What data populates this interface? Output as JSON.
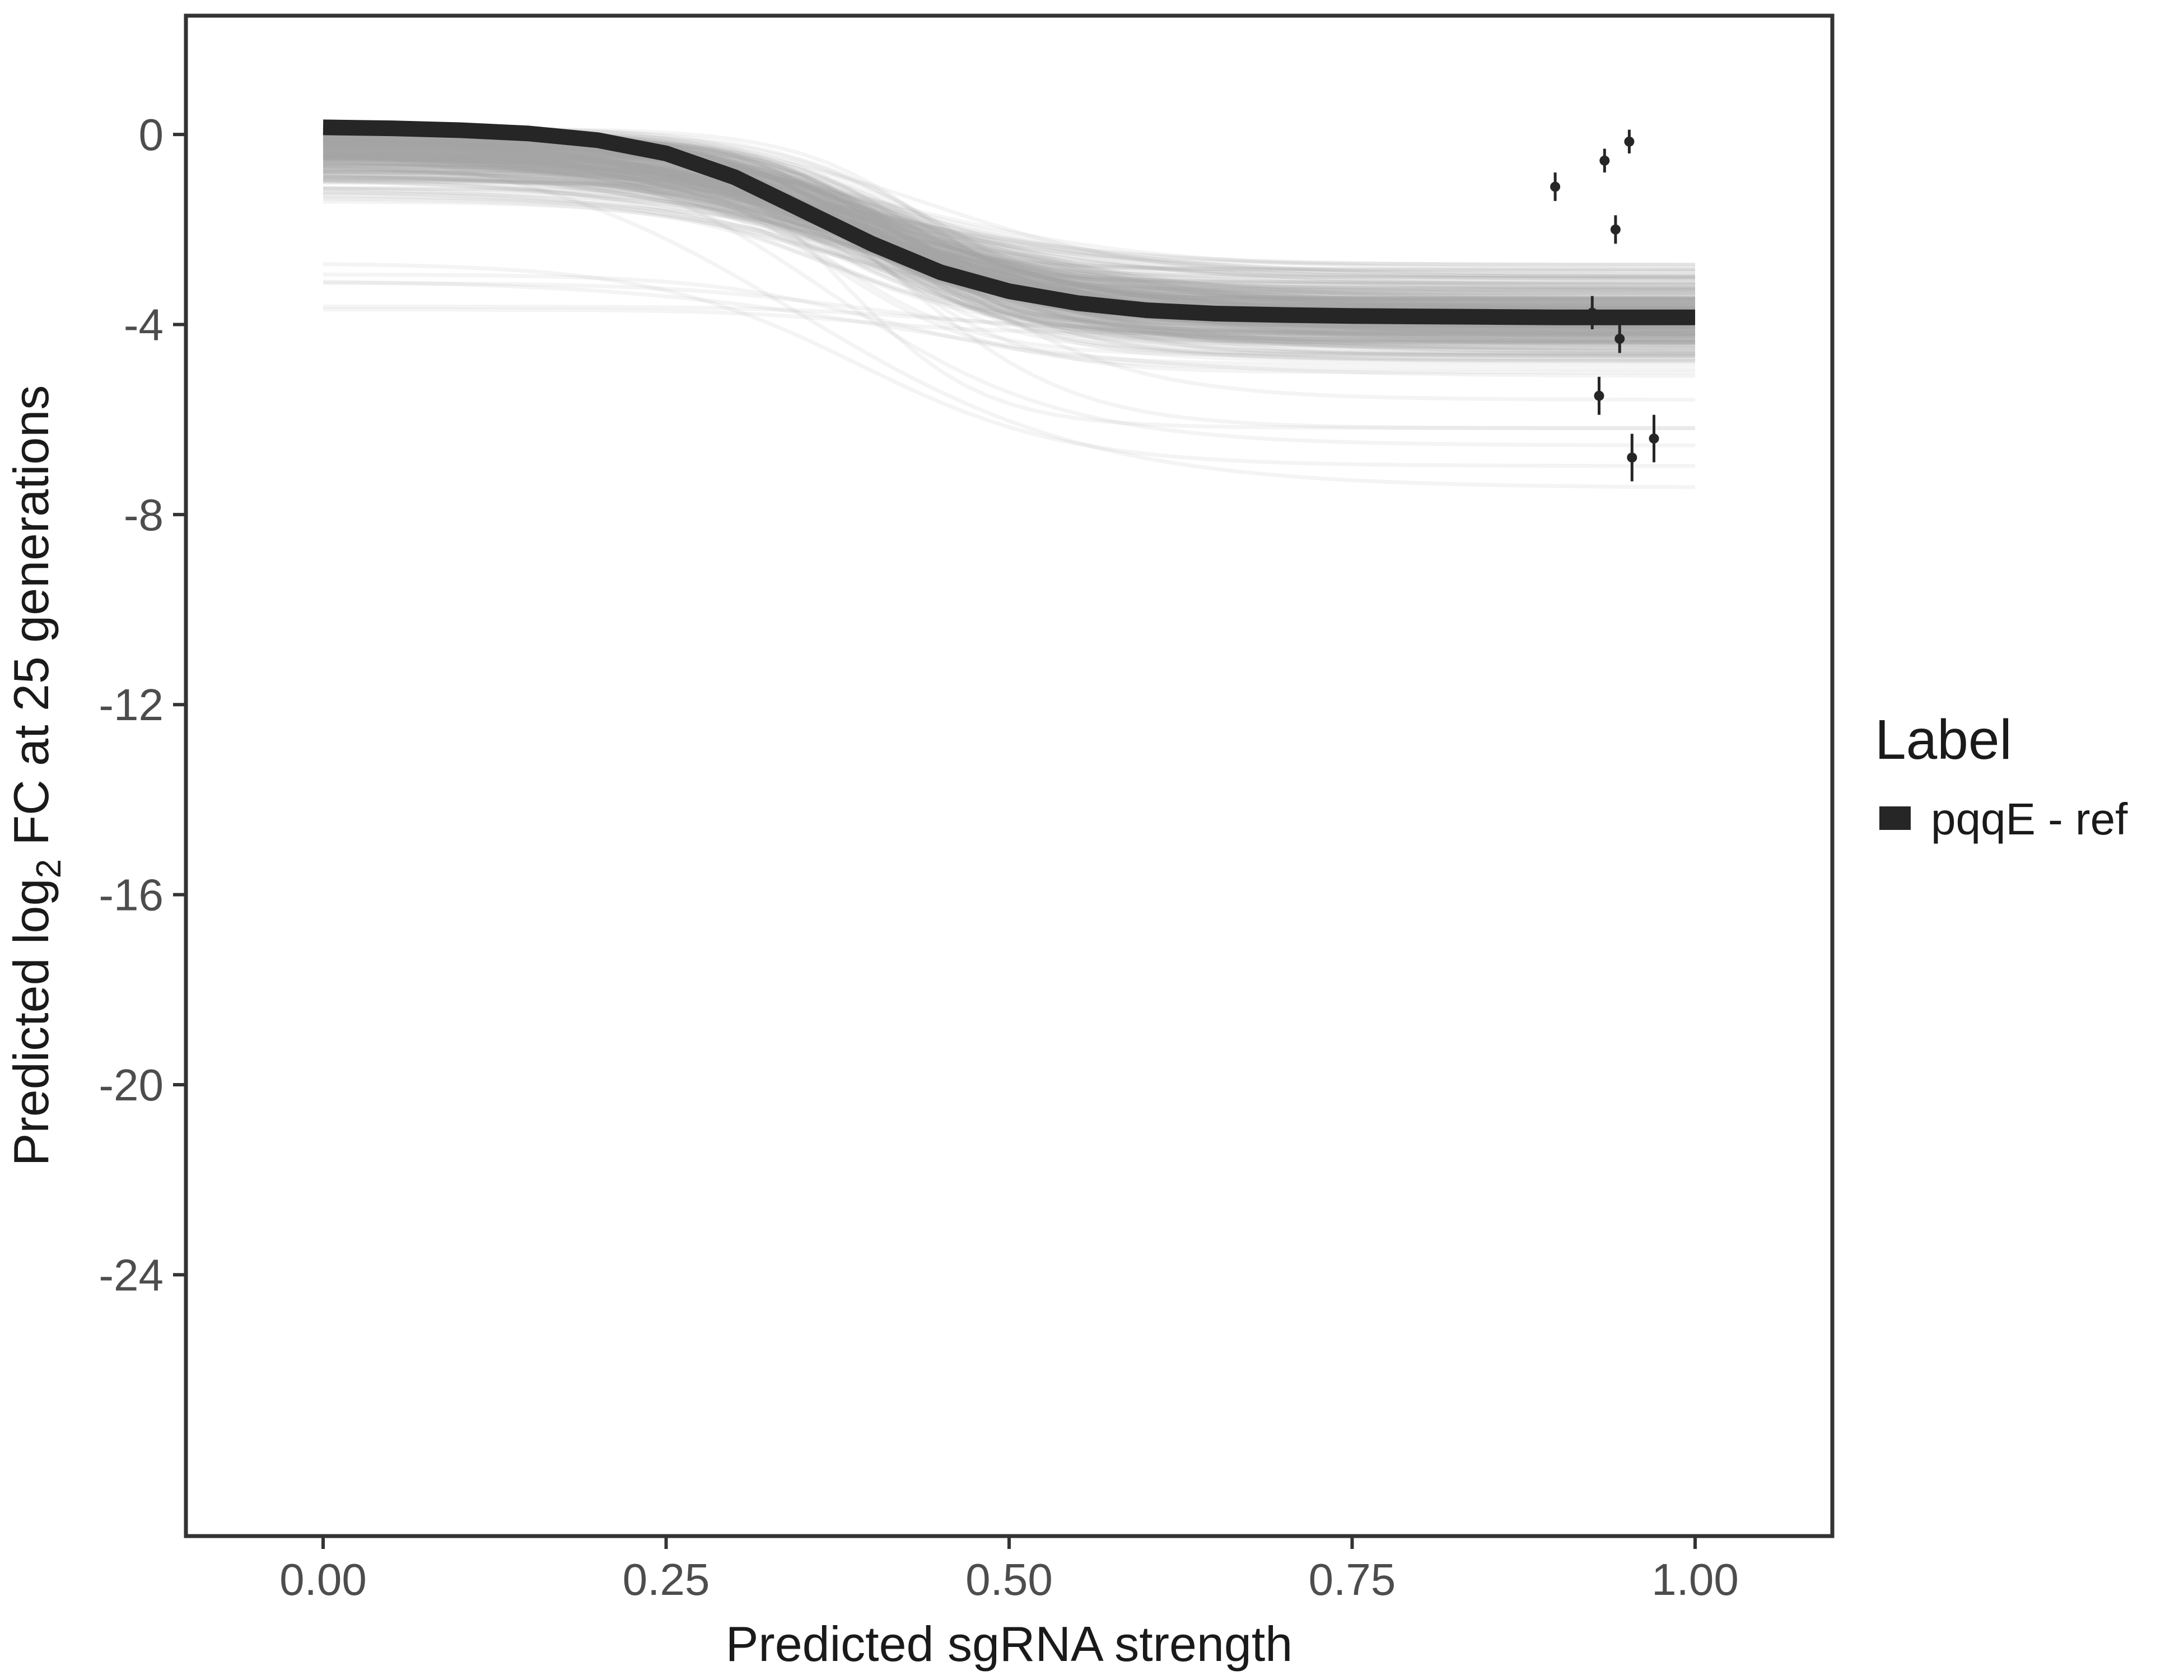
{
  "chart_data": {
    "type": "line",
    "title": "",
    "xlabel": "Predicted sgRNA strength",
    "ylabel": {
      "prefix": "Predicted  log",
      "subscript": "2",
      "suffix": " FC at 25 generations"
    },
    "xlim": [
      -0.1,
      1.1
    ],
    "ylim": [
      -29.5,
      2.5
    ],
    "x_ticks": [
      0,
      0.25,
      0.5,
      0.75,
      1
    ],
    "x_tick_labels": [
      "0.00",
      "0.25",
      "0.50",
      "0.75",
      "1.00"
    ],
    "y_ticks": [
      0,
      -4,
      -8,
      -12,
      -16,
      -20,
      -24
    ],
    "y_tick_labels": [
      "0",
      "-4",
      "-8",
      "-12",
      "-16",
      "-20",
      "-24"
    ],
    "grid": false,
    "legend": {
      "title": "Label",
      "position": "right",
      "entries": [
        {
          "label": "pqqE - ref",
          "color": "#262626"
        }
      ]
    },
    "fit_line": {
      "name": "pqqE - ref",
      "color": "#262626",
      "x": [
        0,
        0.05,
        0.1,
        0.15,
        0.2,
        0.25,
        0.3,
        0.35,
        0.4,
        0.45,
        0.5,
        0.55,
        0.6,
        0.65,
        0.7,
        0.75,
        0.8,
        0.85,
        0.9,
        0.95,
        1
      ],
      "y": [
        0.15,
        0.13,
        0.09,
        0.02,
        -0.12,
        -0.4,
        -0.9,
        -1.6,
        -2.3,
        -2.9,
        -3.3,
        -3.55,
        -3.7,
        -3.77,
        -3.8,
        -3.82,
        -3.83,
        -3.84,
        -3.85,
        -3.85,
        -3.85
      ]
    },
    "posterior_draws": {
      "color": "#a6a6a6",
      "count": 320
    },
    "observations": {
      "color": "#262626",
      "points": [
        {
          "x": 0.898,
          "y": -1.1,
          "ymin": -1.4,
          "ymax": -0.8
        },
        {
          "x": 0.934,
          "y": -0.55,
          "ymin": -0.8,
          "ymax": -0.3
        },
        {
          "x": 0.952,
          "y": -0.15,
          "ymin": -0.4,
          "ymax": 0.1
        },
        {
          "x": 0.942,
          "y": -2.0,
          "ymin": -2.3,
          "ymax": -1.7
        },
        {
          "x": 0.925,
          "y": -3.75,
          "ymin": -4.1,
          "ymax": -3.4
        },
        {
          "x": 0.945,
          "y": -4.3,
          "ymin": -4.6,
          "ymax": -3.9
        },
        {
          "x": 0.93,
          "y": -5.5,
          "ymin": -5.9,
          "ymax": -5.1
        },
        {
          "x": 0.954,
          "y": -6.8,
          "ymin": -7.3,
          "ymax": -6.3
        },
        {
          "x": 0.97,
          "y": -6.4,
          "ymin": -6.9,
          "ymax": -5.9
        }
      ]
    }
  }
}
